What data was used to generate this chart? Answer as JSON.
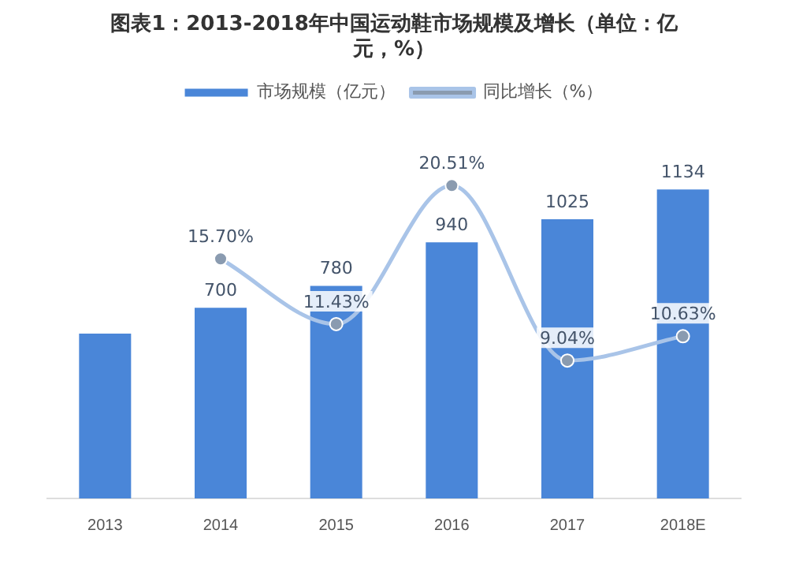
{
  "chart_data": {
    "type": "bar",
    "title": "图表1：2013-2018年中国运动鞋市场规模及增长（单位：亿元，%）",
    "categories": [
      "2013",
      "2014",
      "2015",
      "2016",
      "2017",
      "2018E"
    ],
    "series": [
      {
        "name": "市场规模（亿元）",
        "color": "#4a86d8",
        "values": [
          605,
          700,
          780,
          940,
          1025,
          1134
        ],
        "value_labels": [
          null,
          "700",
          "780",
          "940",
          "1025",
          "1134"
        ]
      },
      {
        "name": "同比增长（%）",
        "type": "line",
        "axis": "y2",
        "color": "#a9c4e8",
        "values": [
          null,
          15.7,
          11.43,
          20.51,
          9.04,
          10.63
        ],
        "value_labels": [
          null,
          "15.70%",
          "11.43%",
          "20.51%",
          "9.04%",
          "10.63%"
        ]
      }
    ],
    "legend": "top",
    "marker": "circle",
    "grid": false,
    "tick_labels": "x"
  }
}
